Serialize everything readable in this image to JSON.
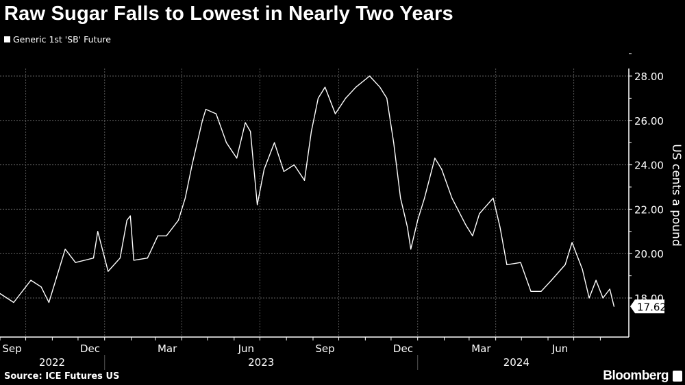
{
  "title": "Raw Sugar Falls to Lowest in Nearly Two Years",
  "legend": "Generic 1st 'SB' Future",
  "source": "Source: ICE Futures US",
  "brand": "Bloomberg",
  "chart_data": {
    "type": "line",
    "title": "Raw Sugar Falls to Lowest in Nearly Two Years",
    "ylabel": "US cents a pound",
    "ylim": [
      16.3,
      29.2
    ],
    "xlim": [
      "2022-09-01",
      "2024-08-31"
    ],
    "yticks": [
      "18.00",
      "20.00",
      "22.00",
      "24.00",
      "26.00",
      "28.00"
    ],
    "month_labels": [
      "Sep",
      "Dec",
      "Mar",
      "Jun",
      "Sep",
      "Dec",
      "Mar",
      "Jun"
    ],
    "month_label_dates": [
      "2022-09-15",
      "2022-12-15",
      "2023-03-15",
      "2023-06-15",
      "2023-09-15",
      "2023-12-15",
      "2024-03-15",
      "2024-06-15"
    ],
    "year_labels": [
      "2022",
      "2023",
      "2024"
    ],
    "grid": true,
    "legend_position": "top-left",
    "last_value_label": "17.62",
    "colors": {
      "background": "#000000",
      "line": "#ffffff"
    },
    "series": [
      {
        "name": "Generic 1st 'SB' Future",
        "points": [
          [
            "2022-09-01",
            18.2
          ],
          [
            "2022-09-17",
            17.8
          ],
          [
            "2022-10-07",
            18.8
          ],
          [
            "2022-10-19",
            18.5
          ],
          [
            "2022-10-28",
            17.8
          ],
          [
            "2022-11-16",
            20.2
          ],
          [
            "2022-11-28",
            19.6
          ],
          [
            "2022-12-19",
            19.8
          ],
          [
            "2022-12-24",
            21.0
          ],
          [
            "2023-01-05",
            19.2
          ],
          [
            "2023-01-19",
            19.8
          ],
          [
            "2023-01-27",
            21.5
          ],
          [
            "2023-01-31",
            21.7
          ],
          [
            "2023-02-04",
            19.7
          ],
          [
            "2023-02-20",
            19.8
          ],
          [
            "2023-03-04",
            20.8
          ],
          [
            "2023-03-14",
            20.8
          ],
          [
            "2023-03-28",
            21.5
          ],
          [
            "2023-04-05",
            22.5
          ],
          [
            "2023-04-13",
            24.0
          ],
          [
            "2023-04-25",
            26.0
          ],
          [
            "2023-04-29",
            26.5
          ],
          [
            "2023-05-11",
            26.3
          ],
          [
            "2023-05-23",
            25.0
          ],
          [
            "2023-06-04",
            24.3
          ],
          [
            "2023-06-14",
            25.9
          ],
          [
            "2023-06-20",
            25.5
          ],
          [
            "2023-06-28",
            22.2
          ],
          [
            "2023-07-06",
            23.8
          ],
          [
            "2023-07-18",
            25.0
          ],
          [
            "2023-07-29",
            23.7
          ],
          [
            "2023-08-10",
            24.0
          ],
          [
            "2023-08-22",
            23.3
          ],
          [
            "2023-08-30",
            25.5
          ],
          [
            "2023-09-07",
            27.0
          ],
          [
            "2023-09-15",
            27.5
          ],
          [
            "2023-09-27",
            26.3
          ],
          [
            "2023-10-09",
            27.0
          ],
          [
            "2023-10-21",
            27.5
          ],
          [
            "2023-11-06",
            28.0
          ],
          [
            "2023-11-18",
            27.5
          ],
          [
            "2023-11-26",
            27.0
          ],
          [
            "2023-12-04",
            25.0
          ],
          [
            "2023-12-12",
            22.5
          ],
          [
            "2023-12-20",
            21.2
          ],
          [
            "2023-12-24",
            20.2
          ],
          [
            "2024-01-01",
            21.5
          ],
          [
            "2024-01-09",
            22.5
          ],
          [
            "2024-01-21",
            24.3
          ],
          [
            "2024-01-29",
            23.8
          ],
          [
            "2024-02-10",
            22.5
          ],
          [
            "2024-02-26",
            21.3
          ],
          [
            "2024-03-05",
            20.8
          ],
          [
            "2024-03-13",
            21.8
          ],
          [
            "2024-03-29",
            22.5
          ],
          [
            "2024-04-06",
            21.2
          ],
          [
            "2024-04-14",
            19.5
          ],
          [
            "2024-04-30",
            19.6
          ],
          [
            "2024-05-12",
            18.3
          ],
          [
            "2024-05-24",
            18.3
          ],
          [
            "2024-06-05",
            18.8
          ],
          [
            "2024-06-21",
            19.5
          ],
          [
            "2024-06-29",
            20.5
          ],
          [
            "2024-07-11",
            19.3
          ],
          [
            "2024-07-19",
            18.0
          ],
          [
            "2024-07-27",
            18.8
          ],
          [
            "2024-08-04",
            18.0
          ],
          [
            "2024-08-12",
            18.4
          ],
          [
            "2024-08-17",
            17.62
          ]
        ]
      }
    ]
  }
}
